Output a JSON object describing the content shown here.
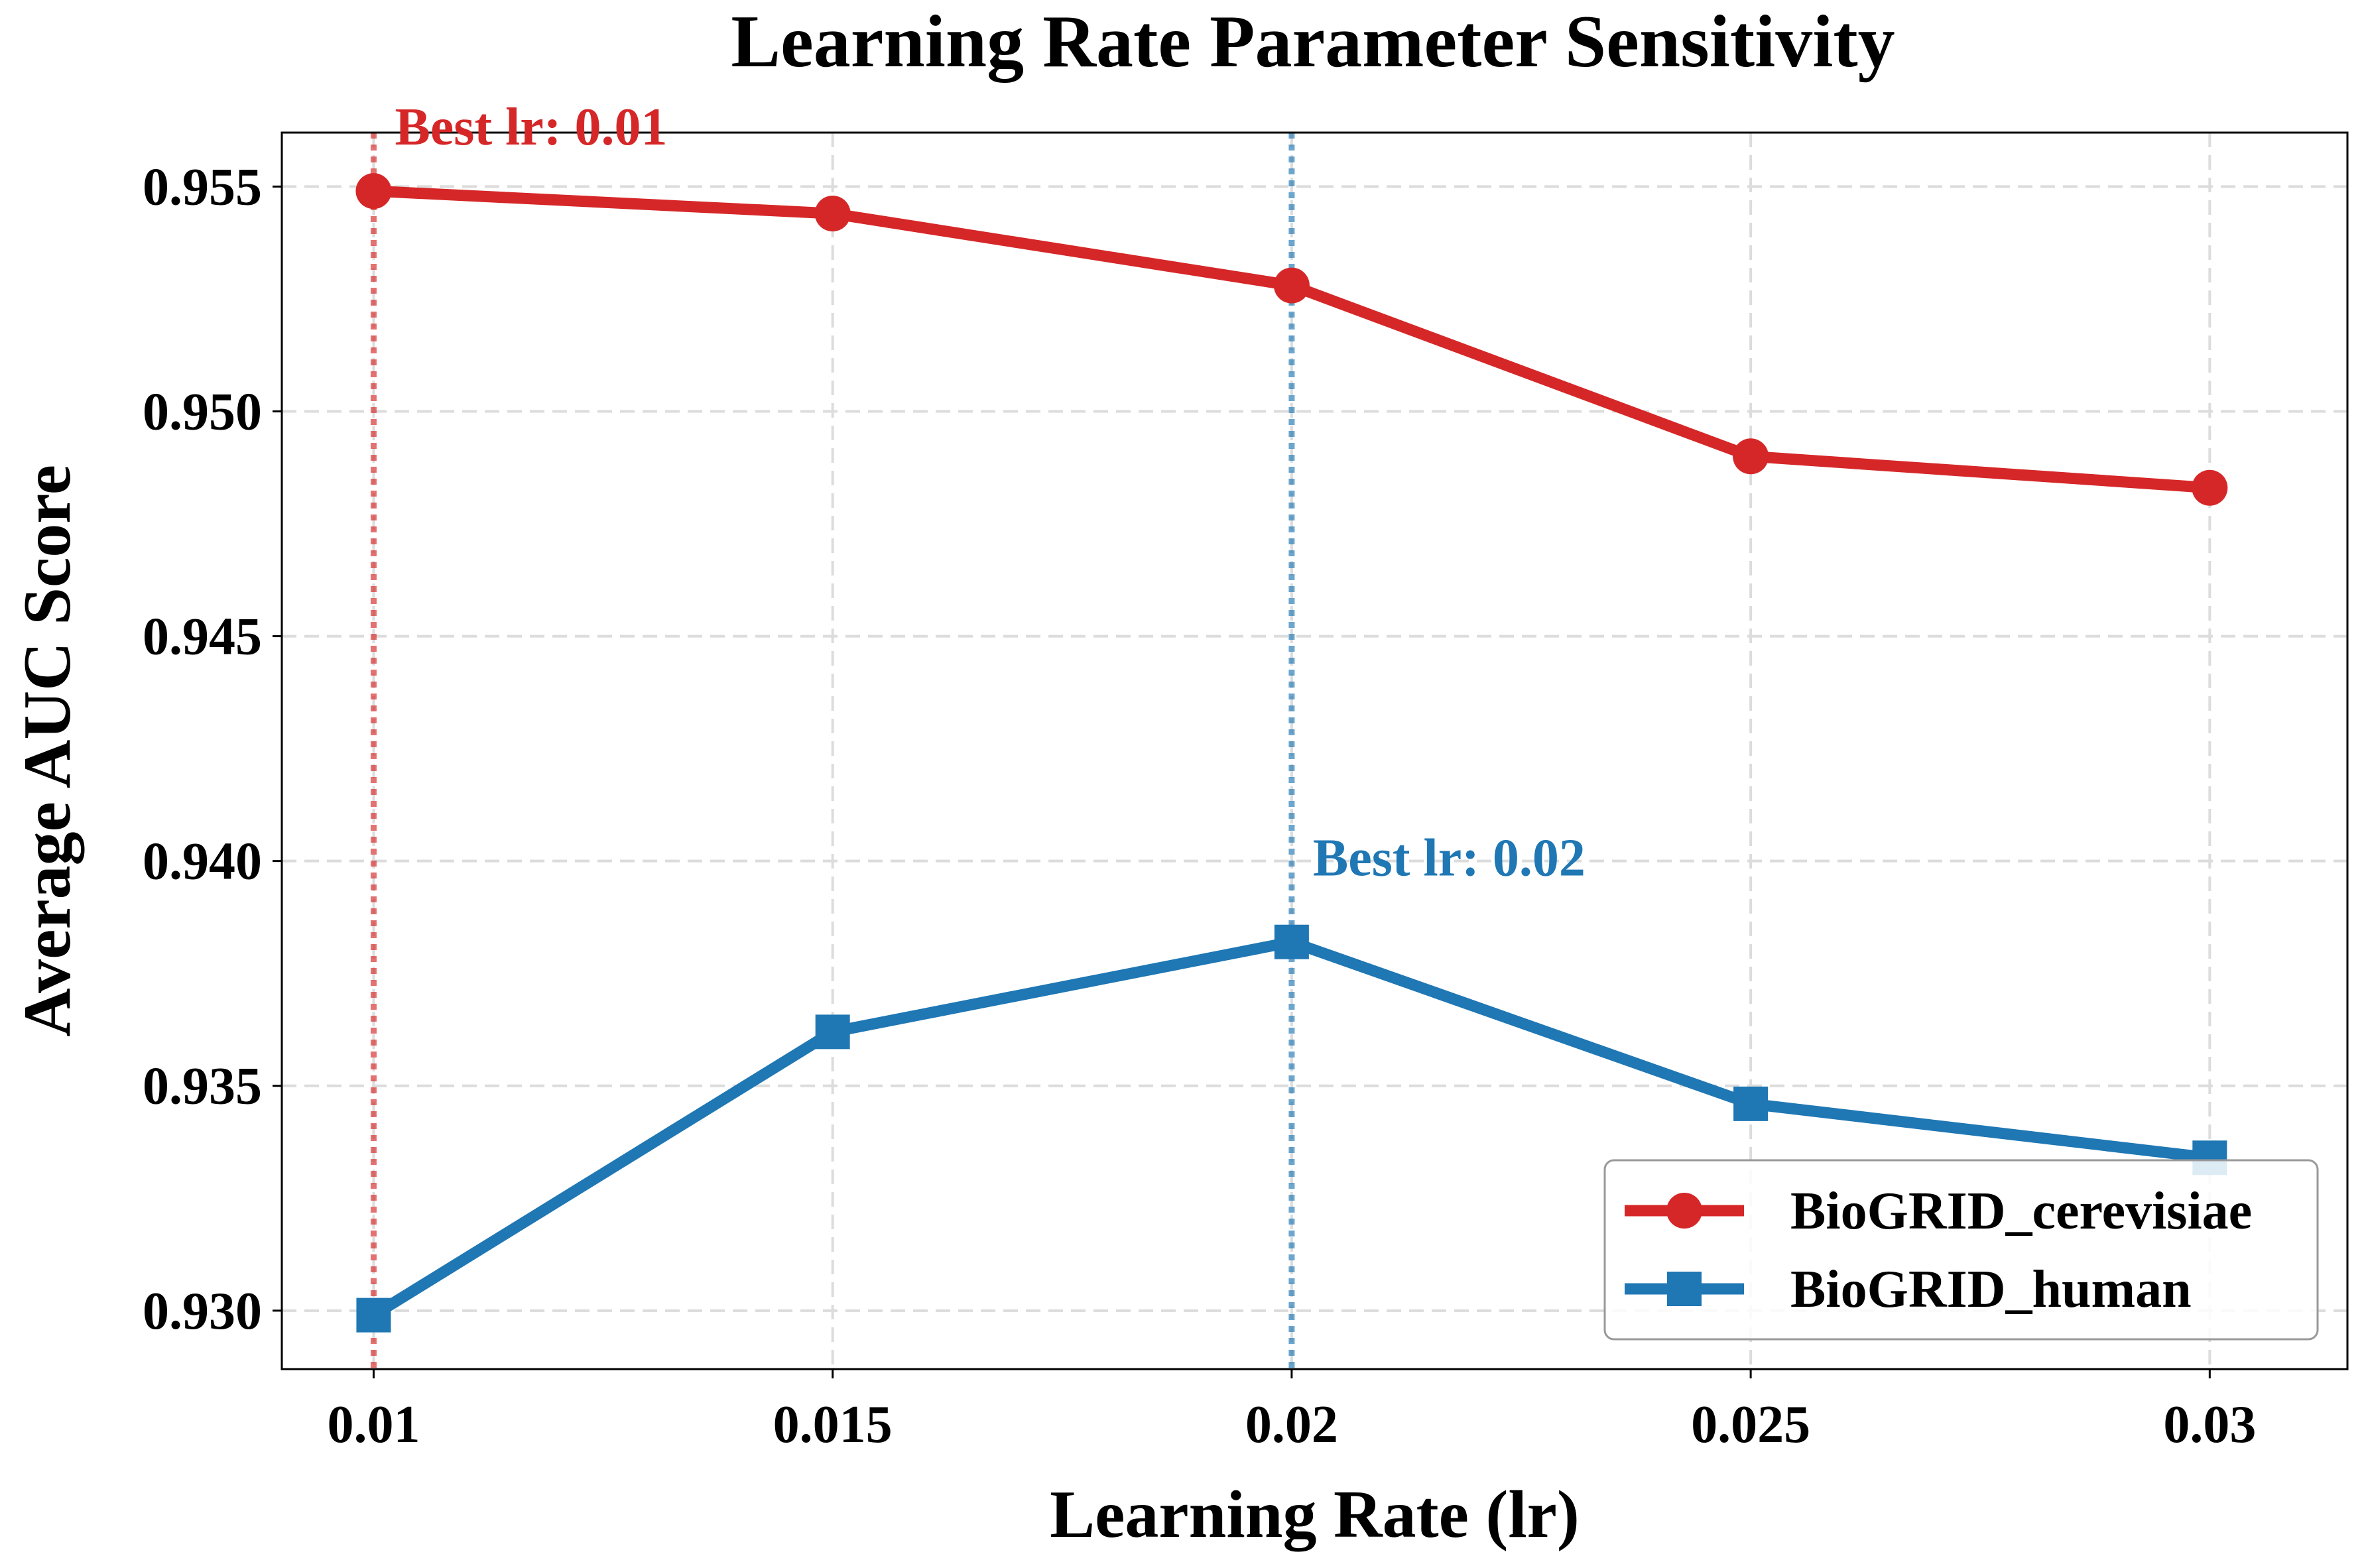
{
  "chart_data": {
    "type": "line",
    "title": "Learning Rate Parameter Sensitivity",
    "xlabel": "Learning Rate (lr)",
    "ylabel": "Average AUC Score",
    "x": [
      0.01,
      0.015,
      0.02,
      0.025,
      0.03
    ],
    "x_tick_labels": [
      "0.01",
      "0.015",
      "0.02",
      "0.025",
      "0.03"
    ],
    "y_ticks": [
      0.93,
      0.935,
      0.94,
      0.945,
      0.95,
      0.955
    ],
    "y_tick_labels": [
      "0.930",
      "0.935",
      "0.940",
      "0.945",
      "0.950",
      "0.955"
    ],
    "xlim": [
      0.009,
      0.0315
    ],
    "ylim": [
      0.9287,
      0.9562
    ],
    "grid": true,
    "legend_position": "lower-right",
    "series": [
      {
        "name": "BioGRID_cerevisiae",
        "values": [
          0.9549,
          0.9544,
          0.9528,
          0.949,
          0.9483
        ],
        "color": "#d62728",
        "marker": "circle"
      },
      {
        "name": "BioGRID_human",
        "values": [
          0.9299,
          0.9362,
          0.9382,
          0.9346,
          0.9334
        ],
        "color": "#1f77b4",
        "marker": "square"
      }
    ],
    "annotations": [
      {
        "text": "Best lr: 0.01",
        "x": 0.01,
        "y": 0.9549,
        "series": 0,
        "color": "#d62728"
      },
      {
        "text": "Best lr: 0.02",
        "x": 0.02,
        "y": 0.9382,
        "series": 1,
        "color": "#1f77b4"
      }
    ]
  }
}
